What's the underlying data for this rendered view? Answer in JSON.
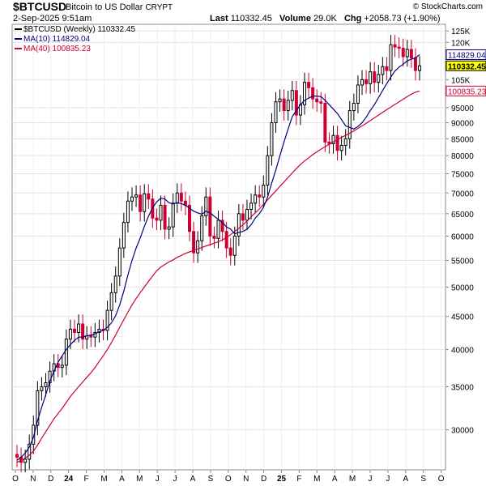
{
  "header": {
    "symbol": "$BTCUSD",
    "description": "Bitcoin to US Dollar",
    "exchange": "CRYPT",
    "date": "2-Sep-2025 9:51am",
    "last_label": "Last",
    "last_value": "110332.45",
    "volume_label": "Volume",
    "volume_value": "29.0K",
    "chg_label": "Chg",
    "chg_value": "+2058.73 (+1.90%)",
    "brand": "© StockCharts.com"
  },
  "legend": {
    "price": "$BTCUSD (Weekly) 110332.45",
    "ma10": "MA(10) 114829.04",
    "ma40": "MA(40) 100835.23"
  },
  "colors": {
    "up": "#000000",
    "down": "#cc0033",
    "ma10": "#000080",
    "ma40": "#cc0033",
    "last_tag": "#ffff00"
  },
  "chart_data": {
    "type": "candlestick",
    "y_scale": "log",
    "ylim": [
      26000,
      128000
    ],
    "y_ticks": [
      125000,
      120000,
      105000,
      95000,
      90000,
      85000,
      80000,
      75000,
      70000,
      65000,
      60000,
      55000,
      50000,
      45000,
      40000,
      35000,
      30000
    ],
    "y_tick_labels": [
      "125K",
      "120K",
      "105K",
      "95000",
      "90000",
      "85000",
      "80000",
      "75000",
      "70000",
      "65000",
      "60000",
      "55000",
      "50000",
      "45000",
      "40000",
      "35000",
      "30000"
    ],
    "x_labels": [
      "O",
      "N",
      "D",
      "24",
      "F",
      "M",
      "A",
      "M",
      "J",
      "J",
      "A",
      "S",
      "O",
      "N",
      "D",
      "25",
      "F",
      "M",
      "A",
      "M",
      "J",
      "J",
      "A",
      "S",
      "O"
    ],
    "price_tags": [
      {
        "value": 114829.04,
        "label": "114829.04",
        "series": "ma10"
      },
      {
        "value": 110332.45,
        "label": "110332.45",
        "series": "last"
      },
      {
        "value": 100835.23,
        "label": "100835.23",
        "series": "ma40"
      }
    ],
    "close": [
      27200,
      26700,
      27000,
      28500,
      30500,
      34500,
      35000,
      35500,
      37000,
      38000,
      37500,
      37800,
      41500,
      43000,
      42500,
      43800,
      41500,
      42000,
      41800,
      42500,
      43000,
      42800,
      46000,
      49000,
      52000,
      57500,
      63000,
      68000,
      69000,
      69500,
      65500,
      69800,
      68500,
      64000,
      63500,
      67000,
      61500,
      62000,
      67500,
      70000,
      68000,
      67000,
      61000,
      56500,
      59000,
      64500,
      69000,
      60000,
      59500,
      63500,
      61000,
      57500,
      56000,
      60000,
      65000,
      63500,
      66000,
      67500,
      69500,
      69000,
      72000,
      80000,
      90000,
      97000,
      98000,
      94000,
      97500,
      101000,
      92500,
      96000,
      104000,
      102000,
      98000,
      97000,
      96500,
      84000,
      83500,
      86000,
      81500,
      83000,
      85000,
      94000,
      96500,
      103000,
      105000,
      103500,
      108000,
      104000,
      107000,
      110000,
      108500,
      119000,
      118000,
      117500,
      114000,
      117000,
      113500,
      108500,
      110332
    ],
    "ma10": [
      26900,
      27200,
      27600,
      28200,
      29200,
      31000,
      32500,
      34000,
      35700,
      37000,
      38200,
      39100,
      40000,
      40700,
      41300,
      41800,
      41800,
      42000,
      42100,
      42300,
      42600,
      42800,
      43300,
      44000,
      45100,
      46900,
      49300,
      52200,
      55000,
      57500,
      59600,
      62100,
      64400,
      66400,
      67800,
      68700,
      68500,
      67600,
      67300,
      67600,
      67400,
      67000,
      66300,
      65600,
      65200,
      64900,
      65600,
      65200,
      64400,
      63700,
      63000,
      62000,
      61500,
      60500,
      60800,
      61000,
      61500,
      62500,
      64000,
      65000,
      66500,
      69000,
      72500,
      76000,
      80000,
      84000,
      88000,
      92000,
      94000,
      96000,
      97500,
      98300,
      99000,
      99000,
      98800,
      97500,
      96000,
      94500,
      93000,
      91000,
      89000,
      88500,
      88000,
      88800,
      90000,
      91800,
      94000,
      96000,
      98500,
      101000,
      103500,
      106000,
      108300,
      109800,
      111000,
      112300,
      113000,
      113500,
      114829
    ],
    "ma40": [
      26700,
      26900,
      27100,
      27400,
      27800,
      28400,
      29100,
      29800,
      30500,
      31200,
      31800,
      32400,
      33100,
      33800,
      34400,
      35000,
      35600,
      36200,
      36800,
      37500,
      38300,
      39100,
      40000,
      41000,
      42100,
      43300,
      44500,
      45700,
      46900,
      48000,
      49000,
      50000,
      51000,
      52000,
      53000,
      53700,
      54200,
      54700,
      55100,
      55600,
      56000,
      56400,
      56700,
      57000,
      57300,
      57600,
      57900,
      58200,
      58500,
      58800,
      59200,
      59700,
      60300,
      61000,
      61700,
      62500,
      63300,
      64300,
      65200,
      66100,
      67200,
      68300,
      69400,
      70500,
      71700,
      72800,
      74000,
      75200,
      76400,
      77500,
      78500,
      79400,
      80300,
      81100,
      81900,
      82600,
      83300,
      84000,
      84700,
      85400,
      86000,
      86700,
      87400,
      88200,
      89000,
      89800,
      90700,
      91600,
      92500,
      93400,
      94300,
      95200,
      96100,
      97000,
      97900,
      98800,
      99700,
      100400,
      100835
    ]
  }
}
